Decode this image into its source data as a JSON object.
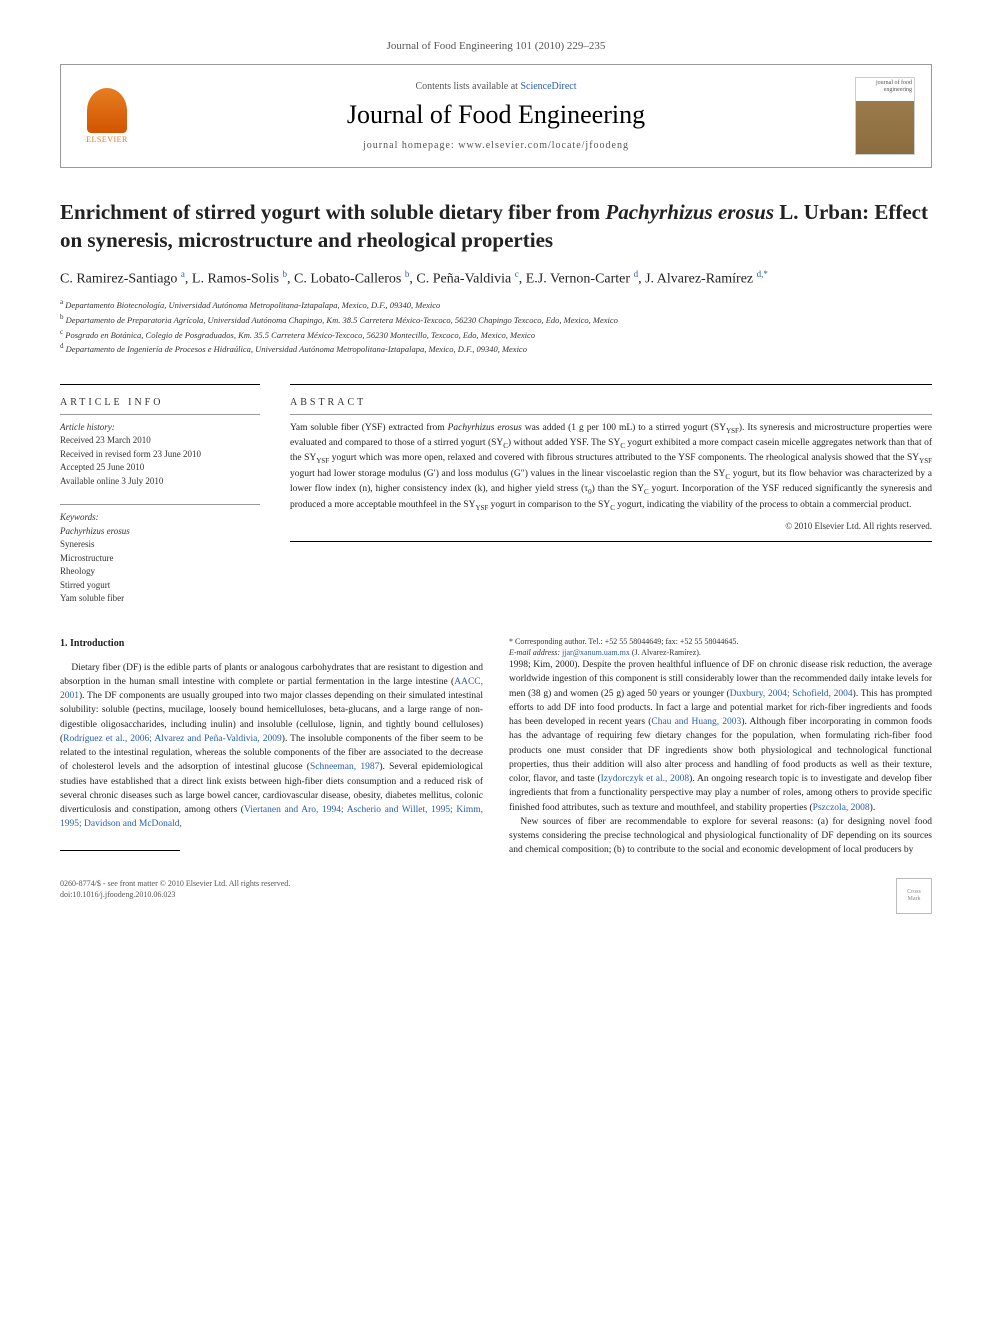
{
  "journal_ref": "Journal of Food Engineering 101 (2010) 229–235",
  "header": {
    "contents_prefix": "Contents lists available at ",
    "contents_link": "ScienceDirect",
    "journal_name": "Journal of Food Engineering",
    "homepage_prefix": "journal homepage: ",
    "homepage_url": "www.elsevier.com/locate/jfoodeng",
    "elsevier_label": "ELSEVIER",
    "cover_text": "journal of food engineering"
  },
  "title_pre": "Enrichment of stirred yogurt with soluble dietary fiber from ",
  "title_em": "Pachyrhizus erosus",
  "title_post": " L. Urban: Effect on syneresis, microstructure and rheological properties",
  "authors_html": "C. Ramirez-Santiago <sup>a</sup>, L. Ramos-Solis <sup>b</sup>, C. Lobato-Calleros <sup>b</sup>, C. Peña-Valdivia <sup>c</sup>, E.J. Vernon-Carter <sup>d</sup>, J. Alvarez-Ramírez <sup>d,*</sup>",
  "affiliations": [
    {
      "sup": "a",
      "text": "Departamento Biotecnología, Universidad Autónoma Metropolitana-Iztapalapa, Mexico, D.F., 09340, Mexico"
    },
    {
      "sup": "b",
      "text": "Departamento de Preparatoria Agrícola, Universidad Autónoma Chapingo, Km. 38.5 Carretera México-Texcoco, 56230 Chapingo Texcoco, Edo, Mexico, Mexico"
    },
    {
      "sup": "c",
      "text": "Posgrado en Botánica, Colegio de Posgraduados, Km. 35.5 Carretera México-Texcoco, 56230 Montecillo, Texcoco, Edo, Mexico, Mexico"
    },
    {
      "sup": "d",
      "text": "Departamento de Ingeniería de Procesos e Hidraúlica, Universidad Autónoma Metropolitana-Iztapalapa, Mexico, D.F., 09340, Mexico"
    }
  ],
  "info_head": "article info",
  "abs_head": "abstract",
  "history": {
    "title": "Article history:",
    "received": "Received 23 March 2010",
    "revised": "Received in revised form 23 June 2010",
    "accepted": "Accepted 25 June 2010",
    "online": "Available online 3 July 2010"
  },
  "keywords": {
    "title": "Keywords:",
    "items": [
      "Pachyrhizus erosus",
      "Syneresis",
      "Microstructure",
      "Rheology",
      "Stirred yogurt",
      "Yam soluble fiber"
    ]
  },
  "abstract": "Yam soluble fiber (YSF) extracted from <em>Pachyrhizus erosus</em> was added (1 g per 100 mL) to a stirred yogurt (SY<sub>YSF</sub>). Its syneresis and microstructure properties were evaluated and compared to those of a stirred yogurt (SY<sub>C</sub>) without added YSF. The SY<sub>C</sub> yogurt exhibited a more compact casein micelle aggregates network than that of the SY<sub>YSF</sub> yogurt which was more open, relaxed and covered with fibrous structures attributed to the YSF components. The rheological analysis showed that the SY<sub>YSF</sub> yogurt had lower storage modulus (G′) and loss modulus (G″) values in the linear viscoelastic region than the SY<sub>C</sub> yogurt, but its flow behavior was characterized by a lower flow index (n), higher consistency index (k), and higher yield stress (τ<sub>0</sub>) than the SY<sub>C</sub> yogurt. Incorporation of the YSF reduced significantly the syneresis and produced a more acceptable mouthfeel in the SY<sub>YSF</sub> yogurt in comparison to the SY<sub>C</sub> yogurt, indicating the viability of the process to obtain a commercial product.",
  "copyright": "© 2010 Elsevier Ltd. All rights reserved.",
  "section1_head": "1. Introduction",
  "body_p1": "Dietary fiber (DF) is the edible parts of plants or analogous carbohydrates that are resistant to digestion and absorption in the human small intestine with complete or partial fermentation in the large intestine (<a>AACC, 2001</a>). The DF components are usually grouped into two major classes depending on their simulated intestinal solubility: soluble (pectins, mucilage, loosely bound hemicelluloses, beta-glucans, and a large range of non-digestible oligosaccharides, including inulin) and insoluble (cellulose, lignin, and tightly bound celluloses) (<a>Rodríguez et al., 2006; Alvarez and Peña-Valdivia, 2009</a>). The insoluble components of the fiber seem to be related to the intestinal regulation, whereas the soluble components of the fiber are associated to the decrease of cholesterol levels and the adsorption of intestinal glucose (<a>Schneeman, 1987</a>). Several epidemiological studies have established that a direct link exists between high-fiber diets consumption and a reduced risk of several chronic diseases such as large bowel cancer, cardiovascular disease, obesity, diabetes mellitus, colonic diverticulosis and constipation, among others (<a>Viertanen and Aro, 1994; Ascherio and Willet, 1995; Kimm, 1995; Davidson and McDonald,",
  "body_p1_cont": "1998; Kim, 2000</a>). Despite the proven healthful influence of DF on chronic disease risk reduction, the average worldwide ingestion of this component is still considerably lower than the recommended daily intake levels for men (38 g) and women (25 g) aged 50 years or younger (<a>Duxbury, 2004; Schofield, 2004</a>). This has prompted efforts to add DF into food products. In fact a large and potential market for rich-fiber ingredients and foods has been developed in recent years (<a>Chau and Huang, 2003</a>). Although fiber incorporating in common foods has the advantage of requiring few dietary changes for the population, when formulating rich-fiber food products one must consider that DF ingredients show both physiological and technological functional properties, thus their addition will also alter process and handling of food products as well as their texture, color, flavor, and taste (<a>Izydorczyk et al., 2008</a>). An ongoing research topic is to investigate and develop fiber ingredients that from a functionality perspective may play a number of roles, among others to provide specific finished food attributes, such as texture and mouthfeel, and stability properties (<a>Pszczola, 2008</a>).",
  "body_p2": "New sources of fiber are recommendable to explore for several reasons: (a) for designing novel food systems considering the precise technological and physiological functionality of DF depending on its sources and chemical composition; (b) to contribute to the social and economic development of local producers by",
  "footnote": {
    "corr": "* Corresponding author. Tel.: +52 55 58044649; fax: +52 55 58044645.",
    "email_label": "E-mail address:",
    "email": "jjar@xanum.uam.mx",
    "email_name": "(J. Alvarez-Ramírez)."
  },
  "footer": {
    "issn": "0260-8774/$ - see front matter © 2010 Elsevier Ltd. All rights reserved.",
    "doi": "doi:10.1016/j.jfoodeng.2010.06.023"
  }
}
